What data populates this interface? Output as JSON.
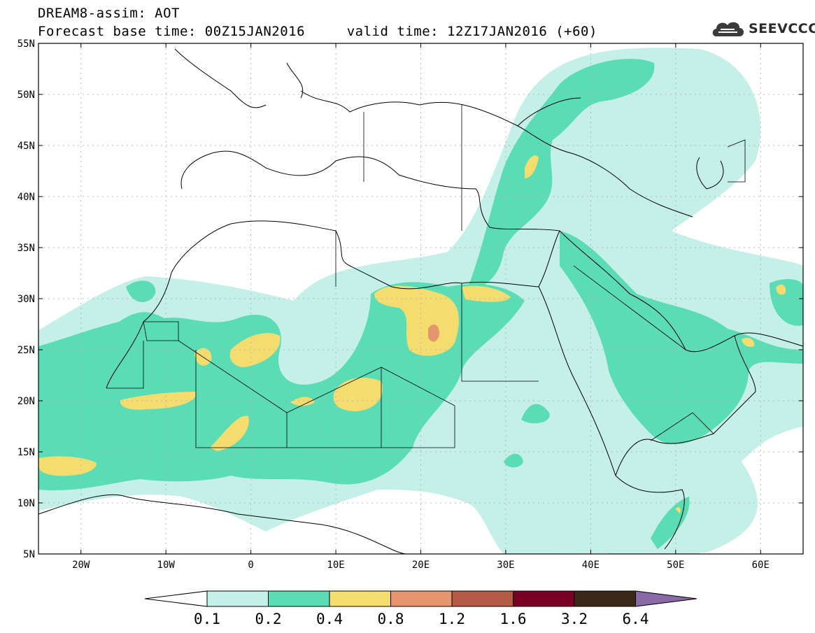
{
  "title": {
    "line1": "DREAM8-assim: AOT",
    "line2": "Forecast base time: 00Z15JAN2016     valid time: 12Z17JAN2016 (+60)"
  },
  "logo": {
    "text": "SEEVCCC",
    "icon": "cloud-icon"
  },
  "map": {
    "lon_range": [
      -25,
      65
    ],
    "lat_range": [
      5,
      55
    ],
    "lat_labels": [
      "55N",
      "50N",
      "45N",
      "40N",
      "35N",
      "30N",
      "25N",
      "20N",
      "15N",
      "10N",
      "5N"
    ],
    "lon_labels": [
      "20W",
      "10W",
      "0",
      "10E",
      "20E",
      "30E",
      "40E",
      "50E",
      "60E"
    ],
    "grid": "dotted"
  },
  "legend": {
    "labels": [
      "0.1",
      "0.2",
      "0.4",
      "0.8",
      "1.2",
      "1.6",
      "3.2",
      "6.4"
    ],
    "colors": [
      "#ffffff",
      "#c4f0e8",
      "#5adcb4",
      "#f5dc6e",
      "#e6966e",
      "#b45a46",
      "#7a0028",
      "#3a2818",
      "#8a6aa6"
    ]
  },
  "colors": {
    "c01": "#c4f0e8",
    "c02": "#5adcb4",
    "c04": "#f5dc6e",
    "c08": "#e6966e"
  }
}
